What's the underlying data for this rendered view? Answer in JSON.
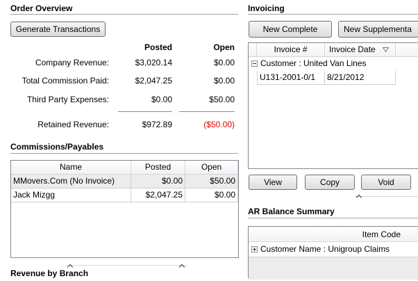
{
  "order_overview": {
    "title": "Order Overview",
    "button": "Generate Transactions",
    "columns": [
      "Posted",
      "Open"
    ],
    "rows": [
      {
        "label": "Company Revenue:",
        "posted": "$3,020.14",
        "open": "$0.00"
      },
      {
        "label": "Total Commission Paid:",
        "posted": "$2,047.25",
        "open": "$0.00"
      },
      {
        "label": "Third Party Expenses:",
        "posted": "$0.00",
        "open": "$50.00"
      }
    ],
    "total": {
      "label": "Retained Revenue:",
      "posted": "$972.89",
      "open": "($50.00)"
    }
  },
  "commissions": {
    "title": "Commissions/Payables",
    "columns": [
      "Name",
      "Posted",
      "Open"
    ],
    "rows": [
      [
        "MMovers.Com (No Invoice)",
        "$0.00",
        "$50.00"
      ],
      [
        "Jack Mizgg",
        "$2,047.25",
        "$0.00"
      ]
    ]
  },
  "revenue_by_branch": {
    "title": "Revenue by Branch"
  },
  "invoicing": {
    "title": "Invoicing",
    "buttons": [
      "New Complete",
      "New Supplementa"
    ],
    "columns": [
      "Invoice #",
      "Invoice Date"
    ],
    "group": "Customer : United Van Lines",
    "rows": [
      [
        "U131-2001-0/1",
        "8/21/2012"
      ]
    ],
    "actions": [
      "View",
      "Copy",
      "Void"
    ]
  },
  "ar_balance_summary": {
    "title": "AR Balance Summary",
    "columns": [
      "Item Code"
    ],
    "group": "Customer Name : Unigroup Claims"
  }
}
